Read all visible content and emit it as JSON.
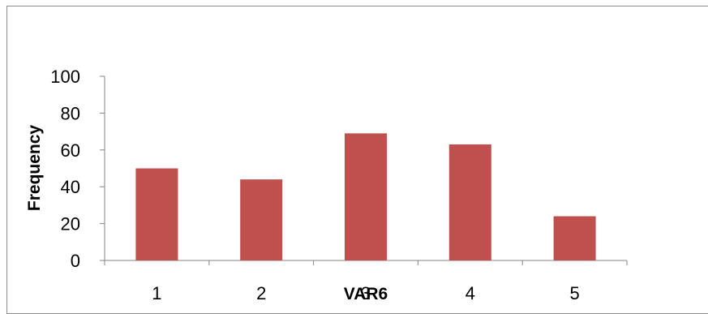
{
  "chart_data": {
    "type": "bar",
    "title": "",
    "xlabel": "VAR6",
    "ylabel": "Frequency",
    "categories": [
      "1",
      "2",
      "3",
      "4",
      "5"
    ],
    "values": [
      50,
      44,
      69,
      63,
      24
    ],
    "ylim": [
      0,
      100
    ],
    "yticks": [
      "0",
      "20",
      "40",
      "60",
      "80",
      "100"
    ],
    "bar_color": "#c0504d",
    "legend": "none",
    "grid": false
  }
}
